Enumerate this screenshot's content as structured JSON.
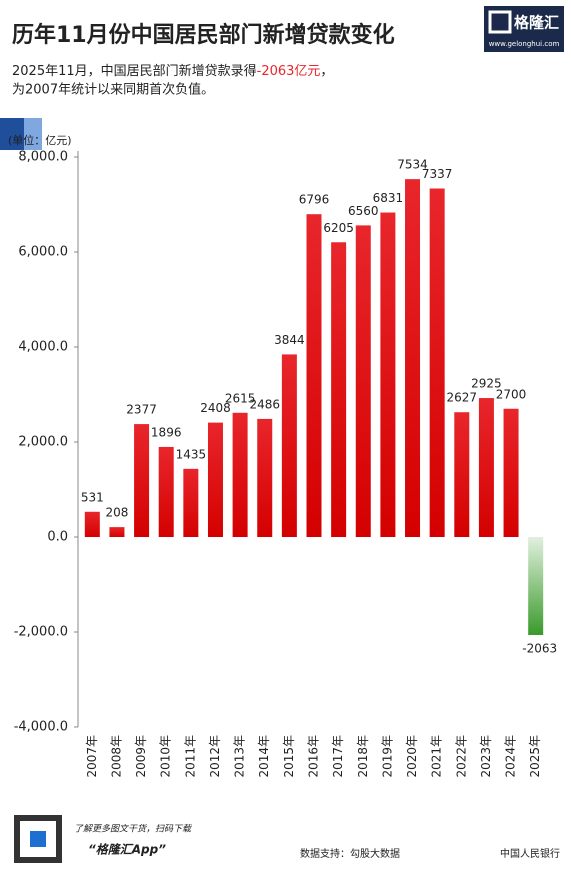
{
  "header": {
    "logo": "格隆汇",
    "site": "www.gelonghui.com"
  },
  "chart_data": {
    "type": "bar",
    "title": "历年11月份中国居民部门新增贷款变化",
    "subtitle": [
      "2025年11月，中国居民部门新增贷款录得",
      "-2063亿元",
      "，"
    ],
    "subtitle_line2": "为2007年统计以来同期首次负值。",
    "unit_label": "(单位：亿元)",
    "categories": [
      "2007年",
      "2008年",
      "2009年",
      "2010年",
      "2011年",
      "2012年",
      "2013年",
      "2014年",
      "2015年",
      "2016年",
      "2017年",
      "2018年",
      "2019年",
      "2020年",
      "2021年",
      "2022年",
      "2023年",
      "2024年",
      "2025年"
    ],
    "values": [
      531,
      208,
      2377,
      1896,
      1435,
      2408,
      2615,
      2486,
      3844,
      6796,
      6205,
      6560,
      6831,
      7534,
      7337,
      2627,
      2925,
      2700,
      -2063
    ],
    "color": "#d40000",
    "negative_color": "#3a9a2a",
    "highlight_color": "#e8262b",
    "ylim": [
      -4000,
      8000
    ],
    "yticks": [
      {
        "value": -4000,
        "label": "-4,000.0"
      },
      {
        "value": -2000,
        "label": "-2,000.0"
      },
      {
        "value": 0,
        "label": "0.0"
      },
      {
        "value": 2000,
        "label": "2,000.0"
      },
      {
        "value": 4000,
        "label": "4,000.0"
      },
      {
        "value": 6000,
        "label": "6,000.0"
      },
      {
        "value": 8000,
        "label": "8,000.0"
      }
    ],
    "grid": false
  },
  "footer": {
    "promo": "了解更多图文干货，扫码下载",
    "app": "“格隆汇App”",
    "source": "数据支持：勾股大数据",
    "source2": "中国人民银行"
  }
}
